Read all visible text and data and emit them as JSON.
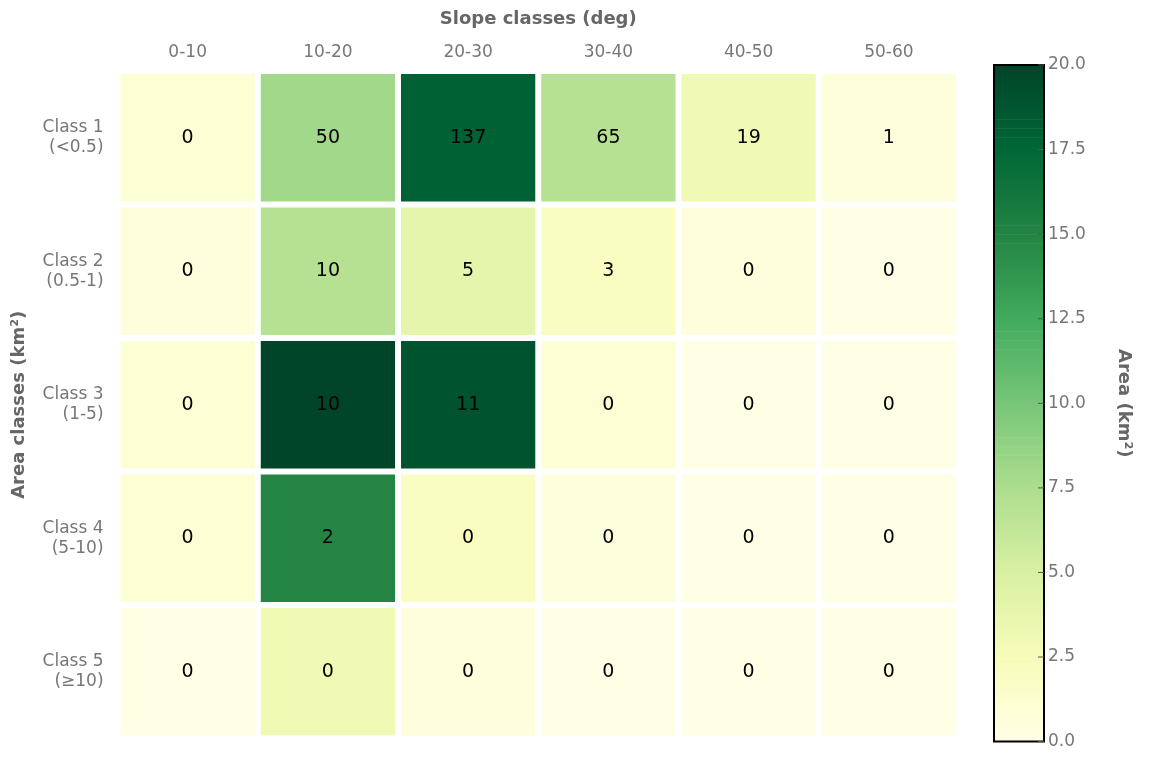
{
  "chart_data": {
    "type": "heatmap",
    "xlabel": "Slope classes (deg)",
    "ylabel": "Area classes (km²)",
    "clabel": "Area (km²)",
    "categories": [
      "0-10",
      "10-20",
      "20-30",
      "30-40",
      "40-50",
      "50-60"
    ],
    "y_categories": [
      "Class 1\n(<0.5)",
      "Class 2\n(0.5-1)",
      "Class 3\n(1-5)",
      "Class 4\n(5-10)",
      "Class 5\n(≥10)"
    ],
    "cells": [
      [
        1,
        8,
        18,
        7,
        3,
        0.5
      ],
      [
        0.5,
        7,
        4,
        2,
        0.5,
        0
      ],
      [
        1,
        20,
        19,
        1,
        0,
        0
      ],
      [
        1,
        15,
        2,
        0.5,
        0,
        0
      ],
      [
        0,
        3,
        0.5,
        0,
        0,
        0
      ]
    ],
    "annotations": [
      "0",
      "50",
      "137",
      "65",
      "19",
      "1",
      "0",
      "10",
      "5",
      "3",
      "0",
      "0",
      "0",
      "10",
      "11",
      "0",
      "0",
      "0",
      "0",
      "2",
      "0",
      "0",
      "0",
      "0",
      "0",
      "0",
      "0",
      "0",
      "0",
      "0"
    ],
    "clim": [
      0,
      20
    ],
    "cticks": [
      {
        "value": 0,
        "label": "0.0"
      },
      {
        "value": 2.5,
        "label": "2.5"
      },
      {
        "value": 5,
        "label": "5.0"
      },
      {
        "value": 7.5,
        "label": "7.5"
      },
      {
        "value": 10,
        "label": "10.0"
      },
      {
        "value": 12.5,
        "label": "12.5"
      },
      {
        "value": 15,
        "label": "15.0"
      },
      {
        "value": 17.5,
        "label": "17.5"
      },
      {
        "value": 20,
        "label": "20.0"
      }
    ],
    "grid": false
  }
}
